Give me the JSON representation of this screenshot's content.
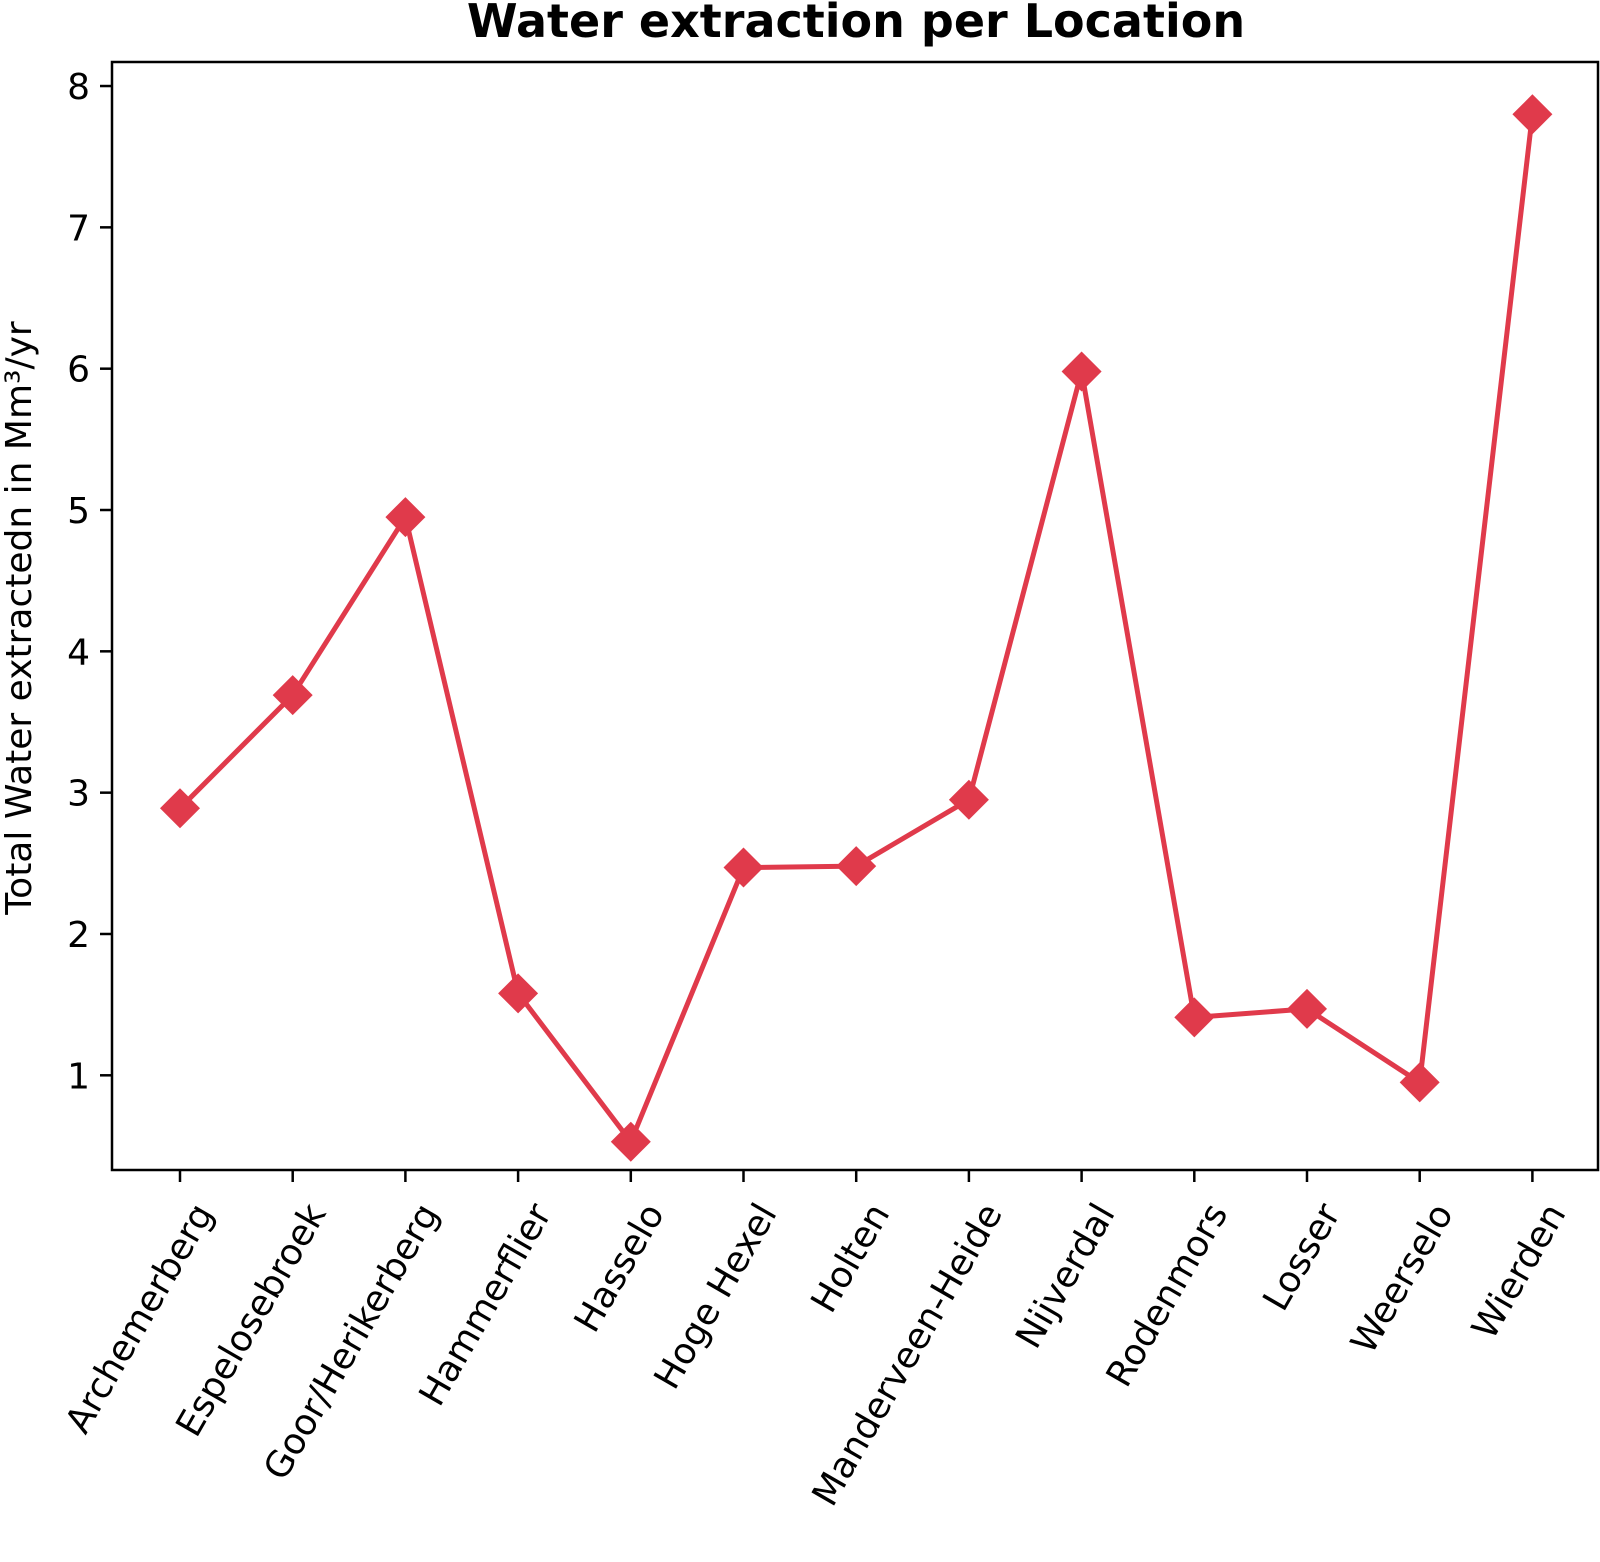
{
  "chart_data": {
    "type": "line",
    "title": "Water extraction per Location",
    "xlabel": "",
    "ylabel": "Total Water extractedn in Mm³/yr",
    "categories": [
      "Archemerberg",
      "Espelosebroek",
      "Goor/Herikerberg",
      "Hammerflier",
      "Hasselo",
      "Hoge Hexel",
      "Holten",
      "Manderveen-Heide",
      "Nijverdal",
      "Rodenmors",
      "Losser",
      "Weerselo",
      "Wierden"
    ],
    "series": [
      {
        "values": [
          2.89,
          3.69,
          4.95,
          1.58,
          0.53,
          2.47,
          2.48,
          2.95,
          5.98,
          1.41,
          1.47,
          0.95,
          7.8
        ]
      }
    ],
    "ylim": [
      0.33,
      8.17
    ],
    "yticks": [
      1,
      2,
      3,
      4,
      5,
      6,
      7,
      8
    ],
    "grid": false,
    "legend": "none",
    "marker": "diamond",
    "color": "#e03a4b"
  }
}
